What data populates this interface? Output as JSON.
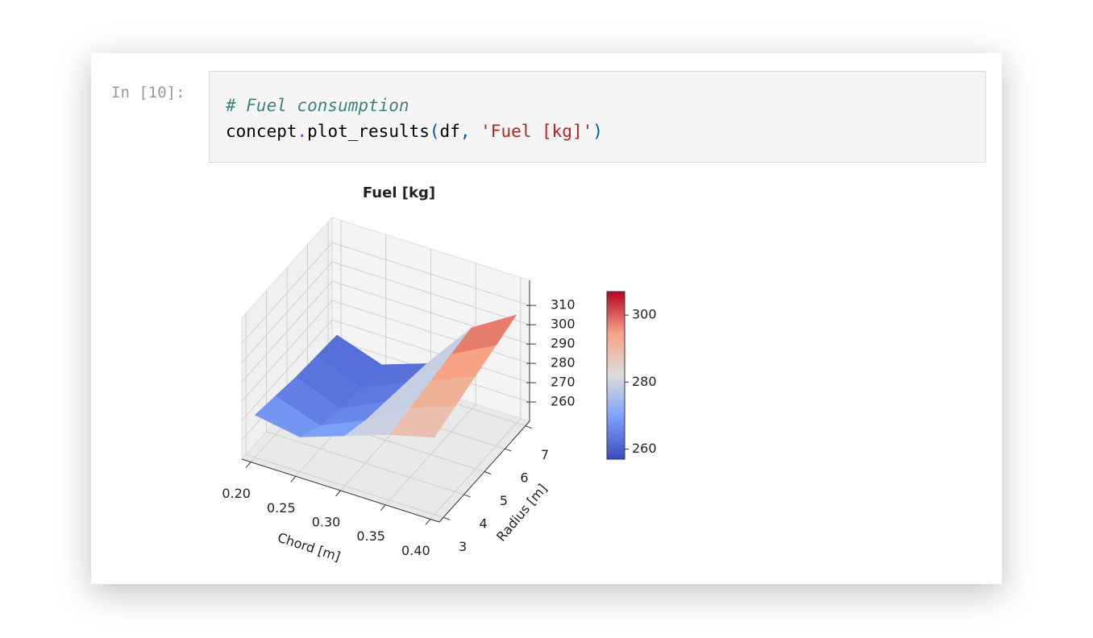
{
  "cell": {
    "prompt": "In [10]:",
    "comment": "# Fuel consumption",
    "code_tokens": [
      "concept",
      ".",
      "plot_results",
      "(",
      "df",
      ",",
      " ",
      "'Fuel [kg]'",
      ")"
    ]
  },
  "chart_data": {
    "type": "surface3d",
    "title": "Fuel [kg]",
    "x_label": "Chord [m]",
    "y_label": "Radius [m]",
    "x": [
      0.2,
      0.25,
      0.3,
      0.35,
      0.4
    ],
    "y": [
      3,
      4,
      5,
      6,
      7
    ],
    "z": [
      [
        272,
        268,
        276,
        284,
        290
      ],
      [
        270,
        262,
        272,
        286,
        294
      ],
      [
        268,
        259,
        270,
        288,
        298
      ],
      [
        267,
        258,
        268,
        290,
        302
      ],
      [
        266,
        258,
        266,
        292,
        306
      ]
    ],
    "xlim": [
      0.19,
      0.41
    ],
    "xticks": [
      {
        "value": 0.2,
        "label": "0.20"
      },
      0.25,
      {
        "value": 0.3,
        "label": "0.30"
      },
      0.35,
      {
        "value": 0.4,
        "label": "0.40"
      }
    ],
    "ylim": [
      2.8,
      7.2
    ],
    "yticks": [
      3,
      4,
      5,
      6,
      7
    ],
    "zlim": [
      250,
      323
    ],
    "zticks": [
      260,
      270,
      280,
      290,
      300,
      310
    ],
    "colormap": "coolwarm",
    "clim": [
      257,
      307
    ],
    "cbticks": [
      260,
      280,
      300
    ],
    "grid": true
  }
}
